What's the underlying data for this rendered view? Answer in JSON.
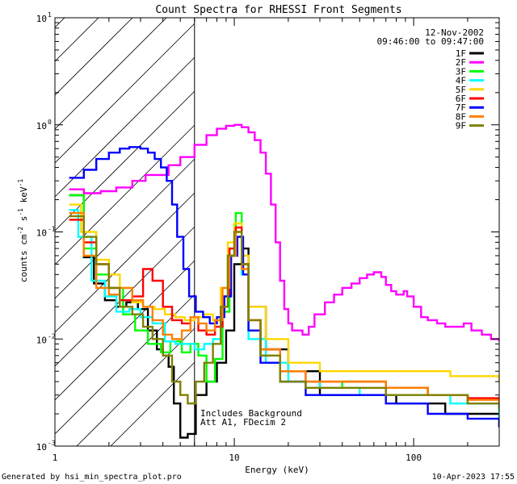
{
  "chart_data": {
    "type": "line",
    "title": "Count Spectra for RHESSI Front Segments",
    "xlabel": "Energy (keV)",
    "ylabel_parts": [
      "counts cm",
      "-2",
      " s",
      "-1",
      " keV",
      "-1"
    ],
    "xscale": "log",
    "yscale": "log",
    "xlim": [
      1,
      300
    ],
    "ylim": [
      0.001,
      10
    ],
    "x_ticks": [
      {
        "value": 1,
        "label": "1"
      },
      {
        "value": 10,
        "label": "10"
      },
      {
        "value": 100,
        "label": "100"
      }
    ],
    "y_ticks": [
      {
        "value": 10,
        "base": "10",
        "exp": "1"
      },
      {
        "value": 1,
        "base": "10",
        "exp": "0"
      },
      {
        "value": 0.1,
        "base": "10",
        "exp": "-1"
      },
      {
        "value": 0.01,
        "base": "10",
        "exp": "-2"
      },
      {
        "value": 0.001,
        "base": "10",
        "exp": "-3"
      }
    ],
    "date": "12-Nov-2002",
    "time_range": "09:46:00 to 09:47:00",
    "hatched_region_max_kev": 6,
    "annotations": [
      "Includes Background",
      "Att A1, FDecim 2"
    ],
    "footer_left": "Generated by hsi_min_spectra_plot.pro",
    "footer_right": "10-Apr-2023 17:55",
    "series": [
      {
        "name": "1F",
        "color": "#000000",
        "points": [
          [
            1.2,
            0.22
          ],
          [
            1.45,
            0.058
          ],
          [
            1.65,
            0.033
          ],
          [
            1.9,
            0.023
          ],
          [
            2.2,
            0.02
          ],
          [
            2.5,
            0.022
          ],
          [
            2.9,
            0.019
          ],
          [
            3.3,
            0.012
          ],
          [
            3.7,
            0.008
          ],
          [
            4.0,
            0.007
          ],
          [
            4.3,
            0.0055
          ],
          [
            4.6,
            0.0025
          ],
          [
            5.0,
            0.0012
          ],
          [
            5.5,
            0.0013
          ],
          [
            6.1,
            0.003
          ],
          [
            7,
            0.004
          ],
          [
            8,
            0.006
          ],
          [
            9,
            0.012
          ],
          [
            10,
            0.05
          ],
          [
            11,
            0.07
          ],
          [
            12,
            0.02
          ],
          [
            15,
            0.008
          ],
          [
            20,
            0.005
          ],
          [
            30,
            0.003
          ],
          [
            50,
            0.003
          ],
          [
            80,
            0.0025
          ],
          [
            150,
            0.002
          ],
          [
            300,
            0.0015
          ]
        ]
      },
      {
        "name": "2F",
        "color": "#ff00ff",
        "points": [
          [
            1.2,
            0.25
          ],
          [
            1.45,
            0.23
          ],
          [
            1.8,
            0.24
          ],
          [
            2.2,
            0.26
          ],
          [
            2.7,
            0.3
          ],
          [
            3.2,
            0.34
          ],
          [
            3.7,
            0.34
          ],
          [
            4.3,
            0.42
          ],
          [
            5,
            0.5
          ],
          [
            6,
            0.65
          ],
          [
            7,
            0.8
          ],
          [
            8,
            0.92
          ],
          [
            9,
            0.98
          ],
          [
            10,
            1.0
          ],
          [
            11,
            0.95
          ],
          [
            12,
            0.85
          ],
          [
            13,
            0.72
          ],
          [
            14,
            0.55
          ],
          [
            15,
            0.35
          ],
          [
            16,
            0.18
          ],
          [
            17,
            0.08
          ],
          [
            18,
            0.035
          ],
          [
            19,
            0.019
          ],
          [
            20,
            0.014
          ],
          [
            21,
            0.012
          ],
          [
            24,
            0.011
          ],
          [
            26,
            0.013
          ],
          [
            28,
            0.017
          ],
          [
            32,
            0.022
          ],
          [
            36,
            0.026
          ],
          [
            40,
            0.03
          ],
          [
            45,
            0.033
          ],
          [
            50,
            0.037
          ],
          [
            55,
            0.04
          ],
          [
            60,
            0.042
          ],
          [
            66,
            0.038
          ],
          [
            70,
            0.032
          ],
          [
            75,
            0.028
          ],
          [
            80,
            0.026
          ],
          [
            88,
            0.028
          ],
          [
            92,
            0.025
          ],
          [
            100,
            0.02
          ],
          [
            110,
            0.016
          ],
          [
            120,
            0.015
          ],
          [
            135,
            0.014
          ],
          [
            150,
            0.013
          ],
          [
            170,
            0.013
          ],
          [
            190,
            0.014
          ],
          [
            210,
            0.012
          ],
          [
            240,
            0.011
          ],
          [
            270,
            0.01
          ],
          [
            300,
            0.0095
          ]
        ]
      },
      {
        "name": "3F",
        "color": "#00ff00",
        "points": [
          [
            1.2,
            0.22
          ],
          [
            1.45,
            0.07
          ],
          [
            1.7,
            0.04
          ],
          [
            2,
            0.03
          ],
          [
            2.4,
            0.017
          ],
          [
            2.8,
            0.012
          ],
          [
            3.3,
            0.009
          ],
          [
            3.9,
            0.0075
          ],
          [
            4.4,
            0.0095
          ],
          [
            5.1,
            0.0075
          ],
          [
            5.7,
            0.009
          ],
          [
            6.3,
            0.007
          ],
          [
            7,
            0.004
          ],
          [
            7.8,
            0.0065
          ],
          [
            8.6,
            0.018
          ],
          [
            9.4,
            0.07
          ],
          [
            10.2,
            0.15
          ],
          [
            11,
            0.05
          ],
          [
            12,
            0.012
          ],
          [
            14,
            0.007
          ],
          [
            18,
            0.004
          ],
          [
            25,
            0.0035
          ],
          [
            40,
            0.004
          ],
          [
            70,
            0.0035
          ],
          [
            120,
            0.003
          ],
          [
            200,
            0.0025
          ],
          [
            300,
            0.002
          ]
        ]
      },
      {
        "name": "4F",
        "color": "#00ffff",
        "points": [
          [
            1.2,
            0.16
          ],
          [
            1.35,
            0.09
          ],
          [
            1.6,
            0.035
          ],
          [
            1.9,
            0.025
          ],
          [
            2.2,
            0.018
          ],
          [
            2.6,
            0.019
          ],
          [
            3.0,
            0.016
          ],
          [
            3.5,
            0.014
          ],
          [
            4.1,
            0.0095
          ],
          [
            4.7,
            0.009
          ],
          [
            5.3,
            0.009
          ],
          [
            6.0,
            0.008
          ],
          [
            6.8,
            0.009
          ],
          [
            7.6,
            0.01
          ],
          [
            8.4,
            0.02
          ],
          [
            9.2,
            0.06
          ],
          [
            10,
            0.09
          ],
          [
            11,
            0.04
          ],
          [
            12,
            0.01
          ],
          [
            15,
            0.006
          ],
          [
            20,
            0.004
          ],
          [
            30,
            0.0035
          ],
          [
            50,
            0.003
          ],
          [
            90,
            0.003
          ],
          [
            160,
            0.0025
          ],
          [
            300,
            0.0018
          ]
        ]
      },
      {
        "name": "5F",
        "color": "#ffd700",
        "points": [
          [
            1.2,
            0.18
          ],
          [
            1.4,
            0.1
          ],
          [
            1.7,
            0.055
          ],
          [
            2,
            0.04
          ],
          [
            2.3,
            0.03
          ],
          [
            2.7,
            0.022
          ],
          [
            3.1,
            0.02
          ],
          [
            3.6,
            0.019
          ],
          [
            4.1,
            0.017
          ],
          [
            4.7,
            0.016
          ],
          [
            5.3,
            0.015
          ],
          [
            6.0,
            0.016
          ],
          [
            6.8,
            0.017
          ],
          [
            7.6,
            0.015
          ],
          [
            8.4,
            0.03
          ],
          [
            9.2,
            0.08
          ],
          [
            10,
            0.12
          ],
          [
            11,
            0.06
          ],
          [
            12,
            0.02
          ],
          [
            15,
            0.01
          ],
          [
            20,
            0.006
          ],
          [
            30,
            0.005
          ],
          [
            50,
            0.005
          ],
          [
            90,
            0.005
          ],
          [
            160,
            0.0045
          ],
          [
            300,
            0.004
          ]
        ]
      },
      {
        "name": "6F",
        "color": "#ff0000",
        "points": [
          [
            1.2,
            0.13
          ],
          [
            1.45,
            0.08
          ],
          [
            1.7,
            0.05
          ],
          [
            2,
            0.03
          ],
          [
            2.3,
            0.023
          ],
          [
            2.7,
            0.025
          ],
          [
            3.1,
            0.045
          ],
          [
            3.5,
            0.035
          ],
          [
            4.0,
            0.02
          ],
          [
            4.5,
            0.015
          ],
          [
            5.1,
            0.014
          ],
          [
            5.7,
            0.016
          ],
          [
            6.3,
            0.012
          ],
          [
            7,
            0.011
          ],
          [
            7.8,
            0.013
          ],
          [
            8.6,
            0.025
          ],
          [
            9.4,
            0.07
          ],
          [
            10.2,
            0.11
          ],
          [
            11,
            0.05
          ],
          [
            12,
            0.015
          ],
          [
            14,
            0.008
          ],
          [
            18,
            0.005
          ],
          [
            25,
            0.004
          ],
          [
            40,
            0.004
          ],
          [
            70,
            0.0035
          ],
          [
            120,
            0.003
          ],
          [
            200,
            0.0028
          ],
          [
            300,
            0.0025
          ]
        ]
      },
      {
        "name": "7F",
        "color": "#0000ff",
        "points": [
          [
            1.2,
            0.32
          ],
          [
            1.45,
            0.38
          ],
          [
            1.7,
            0.48
          ],
          [
            2.0,
            0.55
          ],
          [
            2.3,
            0.6
          ],
          [
            2.6,
            0.62
          ],
          [
            3.0,
            0.6
          ],
          [
            3.3,
            0.55
          ],
          [
            3.6,
            0.48
          ],
          [
            3.9,
            0.4
          ],
          [
            4.2,
            0.3
          ],
          [
            4.5,
            0.18
          ],
          [
            4.8,
            0.09
          ],
          [
            5.2,
            0.045
          ],
          [
            5.6,
            0.025
          ],
          [
            6.1,
            0.018
          ],
          [
            6.7,
            0.016
          ],
          [
            7.3,
            0.014
          ],
          [
            8,
            0.016
          ],
          [
            8.8,
            0.025
          ],
          [
            9.6,
            0.06
          ],
          [
            10.4,
            0.09
          ],
          [
            11.2,
            0.04
          ],
          [
            12,
            0.012
          ],
          [
            14,
            0.006
          ],
          [
            18,
            0.004
          ],
          [
            25,
            0.003
          ],
          [
            40,
            0.003
          ],
          [
            70,
            0.0025
          ],
          [
            120,
            0.002
          ],
          [
            200,
            0.0018
          ],
          [
            300,
            0.0015
          ]
        ]
      },
      {
        "name": "8F",
        "color": "#ff8000",
        "points": [
          [
            1.2,
            0.15
          ],
          [
            1.45,
            0.06
          ],
          [
            1.7,
            0.03
          ],
          [
            2,
            0.026
          ],
          [
            2.3,
            0.03
          ],
          [
            2.7,
            0.023
          ],
          [
            3.1,
            0.02
          ],
          [
            3.5,
            0.015
          ],
          [
            4.0,
            0.011
          ],
          [
            4.5,
            0.01
          ],
          [
            5.1,
            0.012
          ],
          [
            5.7,
            0.016
          ],
          [
            6.3,
            0.014
          ],
          [
            7,
            0.012
          ],
          [
            7.8,
            0.015
          ],
          [
            8.6,
            0.03
          ],
          [
            9.4,
            0.06
          ],
          [
            10.2,
            0.1
          ],
          [
            11,
            0.045
          ],
          [
            12,
            0.015
          ],
          [
            14,
            0.008
          ],
          [
            18,
            0.005
          ],
          [
            25,
            0.004
          ],
          [
            40,
            0.004
          ],
          [
            70,
            0.0035
          ],
          [
            120,
            0.003
          ],
          [
            200,
            0.0027
          ],
          [
            300,
            0.0024
          ]
        ]
      },
      {
        "name": "9F",
        "color": "#808000",
        "points": [
          [
            1.2,
            0.14
          ],
          [
            1.45,
            0.09
          ],
          [
            1.7,
            0.05
          ],
          [
            2,
            0.03
          ],
          [
            2.3,
            0.02
          ],
          [
            2.7,
            0.017
          ],
          [
            3.1,
            0.013
          ],
          [
            3.5,
            0.01
          ],
          [
            4.0,
            0.007
          ],
          [
            4.5,
            0.004
          ],
          [
            5.0,
            0.003
          ],
          [
            5.5,
            0.0025
          ],
          [
            6.1,
            0.004
          ],
          [
            6.8,
            0.006
          ],
          [
            7.6,
            0.009
          ],
          [
            8.4,
            0.02
          ],
          [
            9.2,
            0.06
          ],
          [
            10,
            0.1
          ],
          [
            11,
            0.05
          ],
          [
            12,
            0.015
          ],
          [
            14,
            0.007
          ],
          [
            18,
            0.004
          ],
          [
            25,
            0.0035
          ],
          [
            40,
            0.0035
          ],
          [
            70,
            0.003
          ],
          [
            120,
            0.003
          ],
          [
            200,
            0.0025
          ],
          [
            300,
            0.0022
          ]
        ]
      }
    ]
  }
}
